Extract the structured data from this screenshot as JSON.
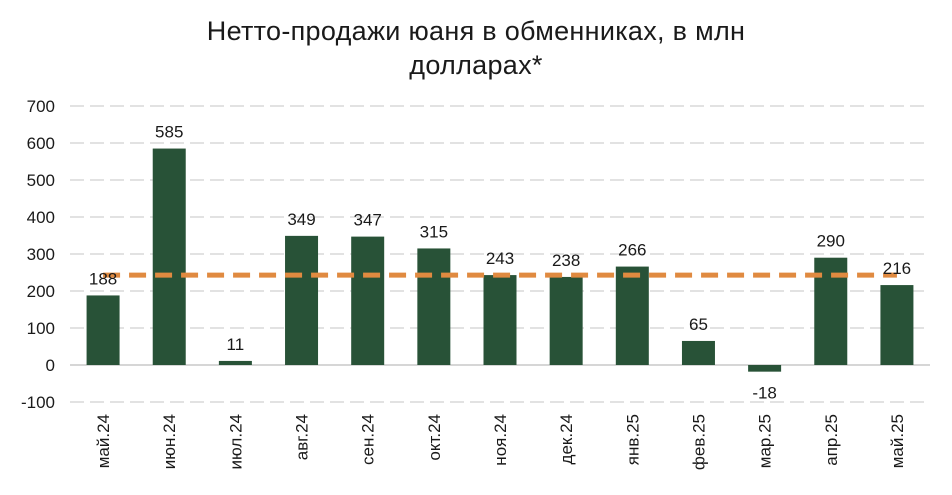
{
  "chart_data": {
    "type": "bar",
    "title_line1": "Нетто-продажи юаня в обменниках, в млн",
    "title_line2": "долларах*",
    "categories": [
      "май.24",
      "июн.24",
      "июл.24",
      "авг.24",
      "сен.24",
      "окт.24",
      "ноя.24",
      "дек.24",
      "янв.25",
      "фев.25",
      "мар.25",
      "апр.25",
      "май.25"
    ],
    "values": [
      188,
      585,
      11,
      349,
      347,
      315,
      243,
      238,
      266,
      65,
      -18,
      290,
      216
    ],
    "value_labels": [
      "188",
      "585",
      "11",
      "349",
      "347",
      "315",
      "243",
      "238",
      "266",
      "65",
      "-18",
      "290",
      "216"
    ],
    "ylim": [
      -100,
      700
    ],
    "yticks": [
      -100,
      0,
      100,
      200,
      300,
      400,
      500,
      600,
      700
    ],
    "ytick_labels": [
      "-100",
      "0",
      "100",
      "200",
      "300",
      "400",
      "500",
      "600",
      "700"
    ],
    "average_line": 243,
    "grid": true,
    "colors": {
      "bar": "#285237",
      "average_line": "#e08a40",
      "grid": "#d9d9d9"
    }
  }
}
